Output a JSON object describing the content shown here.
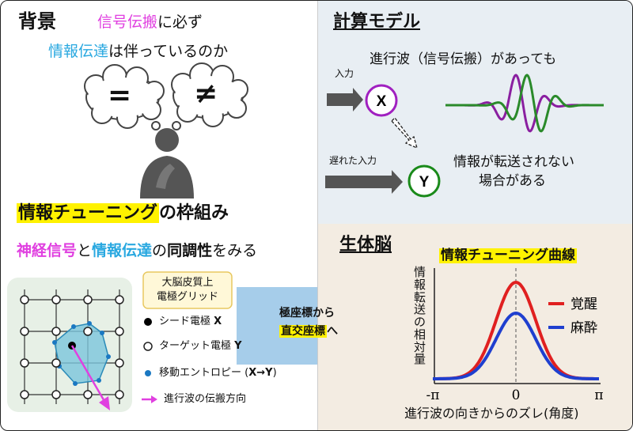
{
  "background": {
    "title": "背景",
    "line1_a": "信号伝搬",
    "line1_b": "に必ず",
    "line2_a": "情報伝達",
    "line2_b": "は伴っているのか",
    "bubble_equal": "=",
    "bubble_notequal": "≠"
  },
  "framework": {
    "title_hl": "情報チューニング",
    "title_rest": "の枠組み",
    "sub_a": "神経信号",
    "sub_b": "と",
    "sub_c": "情報伝達",
    "sub_d": "の",
    "sub_e": "同調性",
    "sub_f": "をみる",
    "grid_label": "大脳皮質上\n電極グリッド",
    "legend": [
      {
        "text": "シード電極 ",
        "bold": "X"
      },
      {
        "text": "ターゲット電極 ",
        "bold": "Y"
      },
      {
        "text": "移動エントロピー (",
        "bold": "X→Y",
        "tail": ")"
      },
      {
        "text": "進行波の伝搬方向",
        "bold": "",
        "tail": ""
      }
    ],
    "arrow_line1": "極座標から",
    "arrow_line2_hl": "直交座標",
    "arrow_line2_rest": "へ"
  },
  "model": {
    "title": "計算モデル",
    "input_label": "入力",
    "delayed_label": "遅れた入力",
    "node_x": "X",
    "node_y": "Y",
    "wave_text": "進行波（信号伝搬）があっても",
    "info_line1": "情報が転送されない",
    "info_line2": "場合がある"
  },
  "brain": {
    "title": "生体脳",
    "chart_title": "情報チューニング曲線",
    "ylabel": "情報転送の相対量",
    "xlabel": "進行波の向きからのズレ(角度)",
    "xticks": [
      "-π",
      "0",
      "π"
    ],
    "legend": [
      {
        "name": "覚醒",
        "color": "#e02020"
      },
      {
        "name": "麻酔",
        "color": "#1f3fcf"
      }
    ]
  },
  "colors": {
    "awake": "#e02020",
    "anesthesia": "#1f3fcf",
    "x_node": "#a020c0",
    "y_node": "#1a8a1a"
  },
  "chart_data": {
    "type": "line",
    "title": "情報チューニング曲線",
    "xlabel": "進行波の向きからのズレ(角度)",
    "ylabel": "情報転送の相対量",
    "xticks": [
      "-π",
      "0",
      "π"
    ],
    "xlim": [
      -3.1416,
      3.1416
    ],
    "series": [
      {
        "name": "覚醒",
        "peak": 1.0,
        "width": 0.75,
        "color": "#e02020"
      },
      {
        "name": "麻酔",
        "peak": 0.68,
        "width": 0.75,
        "color": "#1f3fcf"
      }
    ]
  }
}
